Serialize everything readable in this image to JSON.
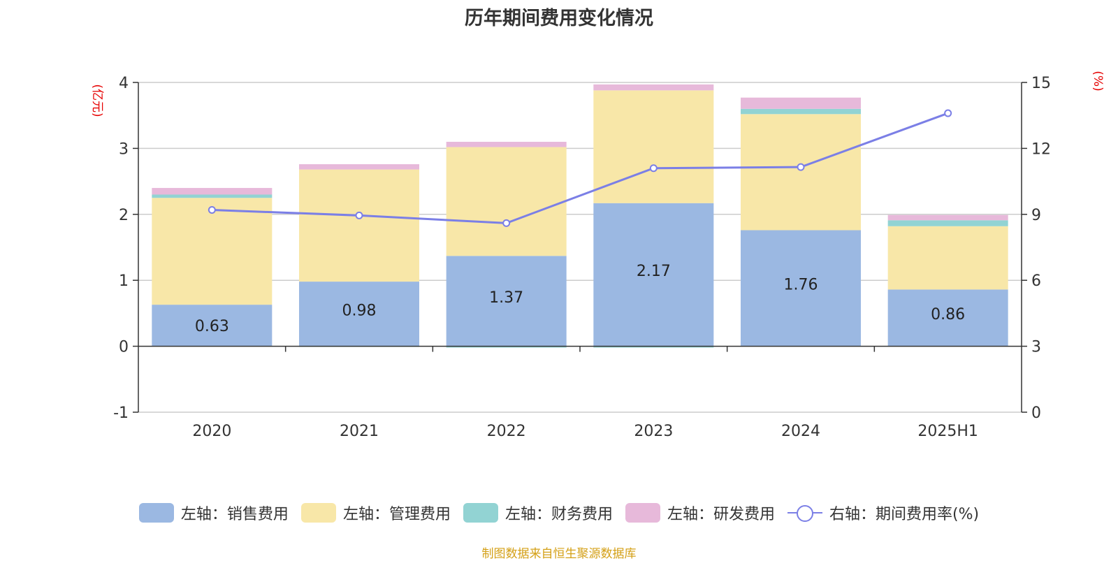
{
  "title": "历年期间费用变化情况",
  "source": "制图数据来自恒生聚源数据库",
  "chart_data": {
    "type": "bar",
    "stacked": true,
    "categories": [
      "2020",
      "2021",
      "2022",
      "2023",
      "2024",
      "2025H1"
    ],
    "series": [
      {
        "name": "左轴：销售费用",
        "values": [
          0.63,
          0.98,
          1.37,
          2.17,
          1.76,
          0.86
        ],
        "color": "#9bb8e2",
        "axis": "left"
      },
      {
        "name": "左轴：管理费用",
        "values": [
          1.62,
          1.7,
          1.65,
          1.71,
          1.76,
          0.96
        ],
        "color": "#f8e7a8",
        "axis": "left"
      },
      {
        "name": "左轴：财务费用",
        "values": [
          0.05,
          -0.01,
          -0.02,
          -0.02,
          0.08,
          0.09
        ],
        "color": "#92d3d3",
        "axis": "left"
      },
      {
        "name": "左轴：研发费用",
        "values": [
          0.1,
          0.08,
          0.08,
          0.09,
          0.17,
          0.08
        ],
        "color": "#e7b9da",
        "axis": "left"
      },
      {
        "name": "右轴：期间费用率(%)",
        "type": "line",
        "values": [
          9.2,
          8.95,
          8.6,
          11.1,
          11.15,
          13.6
        ],
        "color": "#7b7fe6",
        "axis": "right"
      }
    ],
    "data_labels": [
      "0.63",
      "0.98",
      "1.37",
      "2.17",
      "1.76",
      "0.86"
    ],
    "left_axis": {
      "label": "(亿元)",
      "min": -1,
      "max": 4,
      "ticks": [
        "-1",
        "0",
        "1",
        "2",
        "3",
        "4"
      ]
    },
    "right_axis": {
      "label": "(%)",
      "min": 0,
      "max": 15,
      "ticks": [
        "0",
        "3",
        "6",
        "9",
        "12",
        "15"
      ]
    },
    "grid": true,
    "legend_position": "bottom"
  }
}
